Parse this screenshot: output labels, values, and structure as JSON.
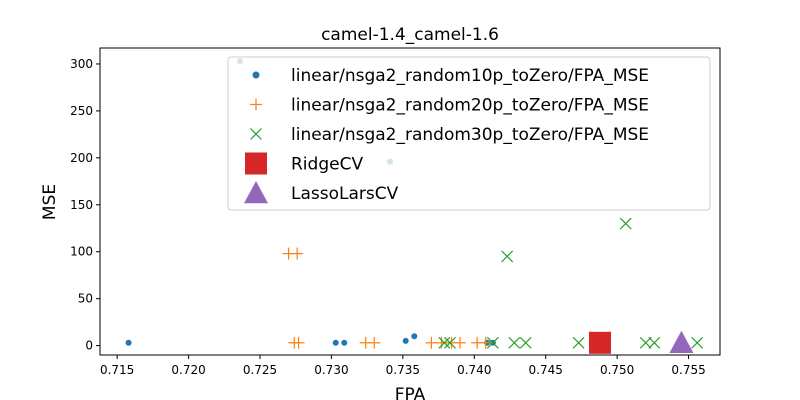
{
  "chart_data": {
    "type": "scatter",
    "title": "camel-1.4_camel-1.6",
    "xlabel": "FPA",
    "ylabel": "MSE",
    "xlim": [
      0.7138,
      0.7572
    ],
    "ylim": [
      -10,
      317
    ],
    "xticks": [
      "0.715",
      "0.720",
      "0.725",
      "0.730",
      "0.735",
      "0.740",
      "0.745",
      "0.750",
      "0.755"
    ],
    "yticks": [
      "0",
      "50",
      "100",
      "150",
      "200",
      "250",
      "300"
    ],
    "xtick_values": [
      0.715,
      0.72,
      0.725,
      0.73,
      0.735,
      0.74,
      0.745,
      0.75,
      0.755
    ],
    "ytick_values": [
      0,
      50,
      100,
      150,
      200,
      250,
      300
    ],
    "grid": false,
    "legend_position": "top-right",
    "series": [
      {
        "name": "linear/nsga2_random10p_toZero/FPA_MSE",
        "marker": "dot",
        "color": "#1f77b4",
        "points": [
          [
            0.7158,
            3
          ],
          [
            0.7236,
            303
          ],
          [
            0.7303,
            3
          ],
          [
            0.7309,
            3
          ],
          [
            0.7341,
            196
          ],
          [
            0.7352,
            5
          ],
          [
            0.7358,
            10
          ],
          [
            0.7409,
            3
          ],
          [
            0.7413,
            3
          ]
        ]
      },
      {
        "name": "linear/nsga2_random20p_toZero/FPA_MSE",
        "marker": "plus",
        "color": "#ff7f0e",
        "points": [
          [
            0.727,
            98
          ],
          [
            0.7276,
            98
          ],
          [
            0.7274,
            3
          ],
          [
            0.7277,
            3
          ],
          [
            0.7324,
            3
          ],
          [
            0.733,
            3
          ],
          [
            0.737,
            3
          ],
          [
            0.7377,
            3
          ],
          [
            0.7384,
            3
          ],
          [
            0.739,
            3
          ],
          [
            0.7402,
            3
          ],
          [
            0.7408,
            3
          ]
        ]
      },
      {
        "name": "linear/nsga2_random30p_toZero/FPA_MSE",
        "marker": "x",
        "color": "#2ca02c",
        "points": [
          [
            0.7379,
            3
          ],
          [
            0.7383,
            3
          ],
          [
            0.7413,
            3
          ],
          [
            0.7423,
            95
          ],
          [
            0.7428,
            3
          ],
          [
            0.7436,
            3
          ],
          [
            0.7473,
            3
          ],
          [
            0.7506,
            130
          ],
          [
            0.752,
            3
          ],
          [
            0.7526,
            3
          ],
          [
            0.7556,
            3
          ]
        ]
      },
      {
        "name": "RidgeCV",
        "marker": "square",
        "color": "#d62728",
        "points": [
          [
            0.7488,
            3
          ]
        ]
      },
      {
        "name": "LassoLarsCV",
        "marker": "triangle",
        "color": "#9467bd",
        "points": [
          [
            0.7545,
            3
          ]
        ]
      }
    ]
  }
}
